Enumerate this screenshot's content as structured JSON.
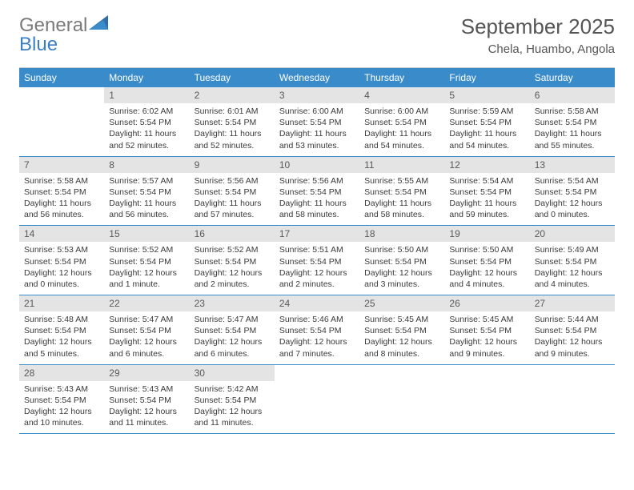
{
  "brand": {
    "part_a": "General",
    "part_b": "Blue"
  },
  "title": "September 2025",
  "location": "Chela, Huambo, Angola",
  "colors": {
    "header_bg": "#3a8bc9",
    "header_text": "#ffffff",
    "daynum_bg": "#e4e4e4",
    "daynum_text": "#595959",
    "brand_gray": "#7a7a7a",
    "brand_blue": "#3a7fc4",
    "cell_border": "#3a8bc9",
    "text": "#3a3a3a"
  },
  "days_of_week": [
    "Sunday",
    "Monday",
    "Tuesday",
    "Wednesday",
    "Thursday",
    "Friday",
    "Saturday"
  ],
  "leading_blank": 1,
  "cells": [
    {
      "n": 1,
      "sunrise": "Sunrise: 6:02 AM",
      "sunset": "Sunset: 5:54 PM",
      "daylight": "Daylight: 11 hours and 52 minutes."
    },
    {
      "n": 2,
      "sunrise": "Sunrise: 6:01 AM",
      "sunset": "Sunset: 5:54 PM",
      "daylight": "Daylight: 11 hours and 52 minutes."
    },
    {
      "n": 3,
      "sunrise": "Sunrise: 6:00 AM",
      "sunset": "Sunset: 5:54 PM",
      "daylight": "Daylight: 11 hours and 53 minutes."
    },
    {
      "n": 4,
      "sunrise": "Sunrise: 6:00 AM",
      "sunset": "Sunset: 5:54 PM",
      "daylight": "Daylight: 11 hours and 54 minutes."
    },
    {
      "n": 5,
      "sunrise": "Sunrise: 5:59 AM",
      "sunset": "Sunset: 5:54 PM",
      "daylight": "Daylight: 11 hours and 54 minutes."
    },
    {
      "n": 6,
      "sunrise": "Sunrise: 5:58 AM",
      "sunset": "Sunset: 5:54 PM",
      "daylight": "Daylight: 11 hours and 55 minutes."
    },
    {
      "n": 7,
      "sunrise": "Sunrise: 5:58 AM",
      "sunset": "Sunset: 5:54 PM",
      "daylight": "Daylight: 11 hours and 56 minutes."
    },
    {
      "n": 8,
      "sunrise": "Sunrise: 5:57 AM",
      "sunset": "Sunset: 5:54 PM",
      "daylight": "Daylight: 11 hours and 56 minutes."
    },
    {
      "n": 9,
      "sunrise": "Sunrise: 5:56 AM",
      "sunset": "Sunset: 5:54 PM",
      "daylight": "Daylight: 11 hours and 57 minutes."
    },
    {
      "n": 10,
      "sunrise": "Sunrise: 5:56 AM",
      "sunset": "Sunset: 5:54 PM",
      "daylight": "Daylight: 11 hours and 58 minutes."
    },
    {
      "n": 11,
      "sunrise": "Sunrise: 5:55 AM",
      "sunset": "Sunset: 5:54 PM",
      "daylight": "Daylight: 11 hours and 58 minutes."
    },
    {
      "n": 12,
      "sunrise": "Sunrise: 5:54 AM",
      "sunset": "Sunset: 5:54 PM",
      "daylight": "Daylight: 11 hours and 59 minutes."
    },
    {
      "n": 13,
      "sunrise": "Sunrise: 5:54 AM",
      "sunset": "Sunset: 5:54 PM",
      "daylight": "Daylight: 12 hours and 0 minutes."
    },
    {
      "n": 14,
      "sunrise": "Sunrise: 5:53 AM",
      "sunset": "Sunset: 5:54 PM",
      "daylight": "Daylight: 12 hours and 0 minutes."
    },
    {
      "n": 15,
      "sunrise": "Sunrise: 5:52 AM",
      "sunset": "Sunset: 5:54 PM",
      "daylight": "Daylight: 12 hours and 1 minute."
    },
    {
      "n": 16,
      "sunrise": "Sunrise: 5:52 AM",
      "sunset": "Sunset: 5:54 PM",
      "daylight": "Daylight: 12 hours and 2 minutes."
    },
    {
      "n": 17,
      "sunrise": "Sunrise: 5:51 AM",
      "sunset": "Sunset: 5:54 PM",
      "daylight": "Daylight: 12 hours and 2 minutes."
    },
    {
      "n": 18,
      "sunrise": "Sunrise: 5:50 AM",
      "sunset": "Sunset: 5:54 PM",
      "daylight": "Daylight: 12 hours and 3 minutes."
    },
    {
      "n": 19,
      "sunrise": "Sunrise: 5:50 AM",
      "sunset": "Sunset: 5:54 PM",
      "daylight": "Daylight: 12 hours and 4 minutes."
    },
    {
      "n": 20,
      "sunrise": "Sunrise: 5:49 AM",
      "sunset": "Sunset: 5:54 PM",
      "daylight": "Daylight: 12 hours and 4 minutes."
    },
    {
      "n": 21,
      "sunrise": "Sunrise: 5:48 AM",
      "sunset": "Sunset: 5:54 PM",
      "daylight": "Daylight: 12 hours and 5 minutes."
    },
    {
      "n": 22,
      "sunrise": "Sunrise: 5:47 AM",
      "sunset": "Sunset: 5:54 PM",
      "daylight": "Daylight: 12 hours and 6 minutes."
    },
    {
      "n": 23,
      "sunrise": "Sunrise: 5:47 AM",
      "sunset": "Sunset: 5:54 PM",
      "daylight": "Daylight: 12 hours and 6 minutes."
    },
    {
      "n": 24,
      "sunrise": "Sunrise: 5:46 AM",
      "sunset": "Sunset: 5:54 PM",
      "daylight": "Daylight: 12 hours and 7 minutes."
    },
    {
      "n": 25,
      "sunrise": "Sunrise: 5:45 AM",
      "sunset": "Sunset: 5:54 PM",
      "daylight": "Daylight: 12 hours and 8 minutes."
    },
    {
      "n": 26,
      "sunrise": "Sunrise: 5:45 AM",
      "sunset": "Sunset: 5:54 PM",
      "daylight": "Daylight: 12 hours and 9 minutes."
    },
    {
      "n": 27,
      "sunrise": "Sunrise: 5:44 AM",
      "sunset": "Sunset: 5:54 PM",
      "daylight": "Daylight: 12 hours and 9 minutes."
    },
    {
      "n": 28,
      "sunrise": "Sunrise: 5:43 AM",
      "sunset": "Sunset: 5:54 PM",
      "daylight": "Daylight: 12 hours and 10 minutes."
    },
    {
      "n": 29,
      "sunrise": "Sunrise: 5:43 AM",
      "sunset": "Sunset: 5:54 PM",
      "daylight": "Daylight: 12 hours and 11 minutes."
    },
    {
      "n": 30,
      "sunrise": "Sunrise: 5:42 AM",
      "sunset": "Sunset: 5:54 PM",
      "daylight": "Daylight: 12 hours and 11 minutes."
    }
  ]
}
